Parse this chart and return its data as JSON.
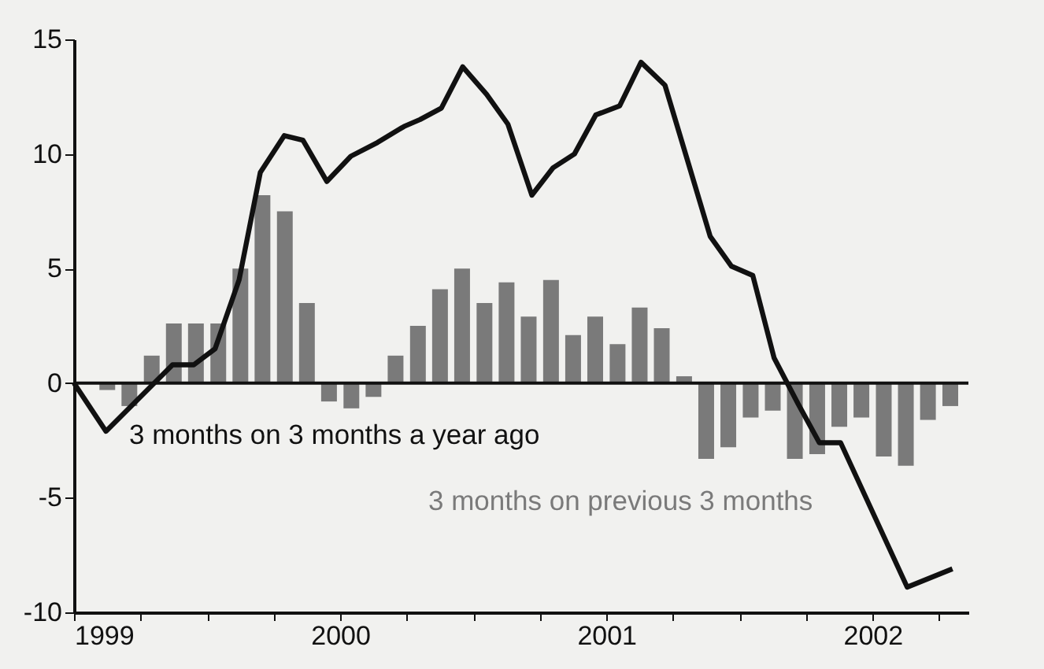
{
  "chart_data": {
    "type": "bar",
    "x": [
      1999.125,
      1999.208,
      1999.292,
      1999.375,
      1999.458,
      1999.542,
      1999.625,
      1999.708,
      1999.792,
      1999.875,
      1999.958,
      2000.042,
      2000.125,
      2000.208,
      2000.292,
      2000.375,
      2000.458,
      2000.542,
      2000.625,
      2000.708,
      2000.792,
      2000.875,
      2000.958,
      2001.042,
      2001.125,
      2001.208,
      2001.292,
      2001.375,
      2001.458,
      2001.542,
      2001.625,
      2001.708,
      2001.792,
      2001.875,
      2001.958,
      2002.042,
      2002.125,
      2002.208,
      2002.292
    ],
    "series": [
      {
        "name": "3 months on previous 3 months",
        "color": "#7a7a7a",
        "values": [
          -0.3,
          -1.0,
          1.2,
          2.6,
          2.6,
          2.6,
          5.0,
          8.2,
          7.5,
          3.5,
          -0.8,
          -1.1,
          -0.6,
          1.2,
          2.5,
          4.1,
          5.0,
          3.5,
          4.4,
          2.9,
          4.5,
          2.1,
          2.9,
          1.7,
          3.3,
          2.4,
          0.3,
          -3.3,
          -2.8,
          -1.5,
          -1.2,
          -3.3,
          -3.1,
          -1.9,
          -1.5,
          -3.2,
          -3.6,
          -1.6,
          -1.0
        ]
      },
      {
        "type": "line",
        "name": "3 months on 3 months a year ago",
        "color": "#111111",
        "x": [
          1999.0,
          1999.12,
          1999.37,
          1999.45,
          1999.53,
          1999.62,
          1999.7,
          1999.79,
          1999.86,
          1999.95,
          2000.04,
          2000.14,
          2000.24,
          2000.3,
          2000.38,
          2000.46,
          2000.55,
          2000.63,
          2000.72,
          2000.8,
          2000.88,
          2000.96,
          2001.05,
          2001.13,
          2001.22,
          2001.3,
          2001.39,
          2001.47,
          2001.55,
          2001.63,
          2001.72,
          2001.8,
          2001.88,
          2002.13,
          2002.3
        ],
        "values": [
          0.0,
          -2.1,
          0.8,
          0.8,
          1.5,
          4.5,
          9.2,
          10.8,
          10.6,
          8.8,
          9.9,
          10.5,
          11.2,
          11.5,
          12.0,
          13.8,
          12.6,
          11.3,
          8.2,
          9.4,
          10.0,
          11.7,
          12.1,
          14.0,
          13.0,
          9.9,
          6.4,
          5.1,
          4.7,
          1.1,
          -0.9,
          -2.6,
          -2.6,
          -8.9,
          -8.1
        ]
      }
    ],
    "xlim": [
      1999,
      2002.36
    ],
    "xticks": [
      {
        "value": 1999,
        "label": "1999"
      },
      {
        "value": 1999.25,
        "label": null
      },
      {
        "value": 1999.5,
        "label": null
      },
      {
        "value": 1999.75,
        "label": null
      },
      {
        "value": 2000,
        "label": "2000"
      },
      {
        "value": 2000.25,
        "label": null
      },
      {
        "value": 2000.5,
        "label": null
      },
      {
        "value": 2000.75,
        "label": null
      },
      {
        "value": 2001,
        "label": "2001"
      },
      {
        "value": 2001.25,
        "label": null
      },
      {
        "value": 2001.5,
        "label": null
      },
      {
        "value": 2001.75,
        "label": null
      },
      {
        "value": 2002,
        "label": "2002"
      },
      {
        "value": 2002.25,
        "label": null
      }
    ],
    "ylim": [
      -10,
      15
    ],
    "yticks": [
      -10,
      -5,
      0,
      5,
      10,
      15
    ],
    "ref_lines": [
      {
        "axis": "y",
        "value": 0
      }
    ]
  }
}
